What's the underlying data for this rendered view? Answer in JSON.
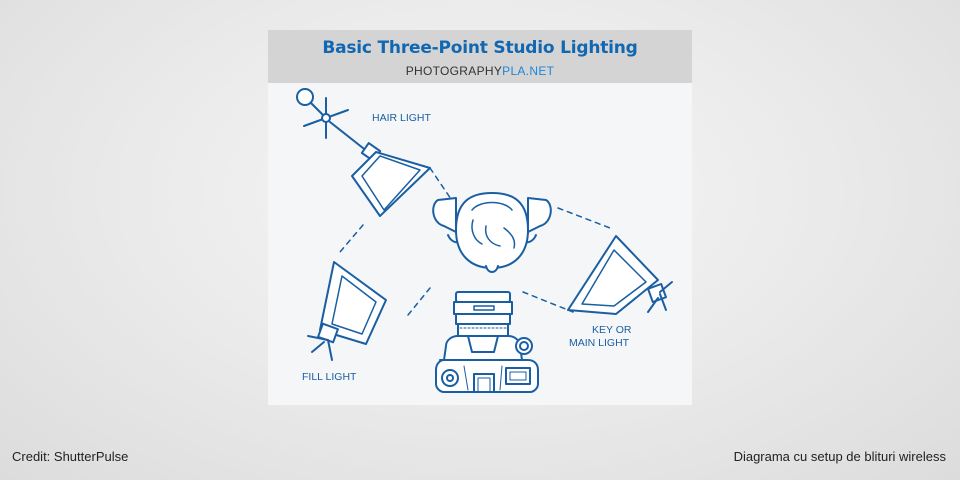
{
  "diagram": {
    "title": "Basic Three-Point Studio Lighting",
    "site_primary": "PHOTOGRAPHY",
    "site_accent": "PLA.NET",
    "labels": {
      "hair_light": "HAIR LIGHT",
      "key_light_line1": "KEY OR",
      "key_light_line2": "MAIN LIGHT",
      "fill_light": "FILL LIGHT"
    },
    "colors": {
      "line": "#1a5fa3",
      "accent": "#1c86d8",
      "header_bg": "#d4d4d4",
      "card_bg": "#f5f6f7"
    },
    "icons": [
      "hair-light-softbox-icon",
      "fill-light-softbox-icon",
      "key-light-softbox-icon",
      "subject-head-icon",
      "camera-icon"
    ]
  },
  "footer": {
    "credit_left": "Credit: ShutterPulse",
    "caption_right": "Diagrama cu setup de blituri wireless"
  }
}
